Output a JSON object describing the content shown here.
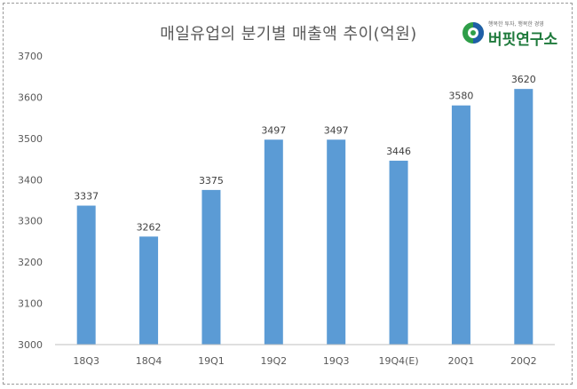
{
  "title": "매일유업의 분기별 매출액 추이(억원)",
  "logo": {
    "name": "버핏연구소",
    "tagline": "행복한 투자, 행복한 경영",
    "colors": {
      "green": "#2e9e48",
      "blue": "#1f5fa8",
      "text": "#1f7a3c"
    }
  },
  "chart_data": {
    "type": "bar",
    "title": "매일유업의 분기별 매출액 추이(억원)",
    "categories": [
      "18Q3",
      "18Q4",
      "19Q1",
      "19Q2",
      "19Q3",
      "19Q4(E)",
      "20Q1",
      "20Q2"
    ],
    "values": [
      3337,
      3262,
      3375,
      3497,
      3497,
      3446,
      3580,
      3620
    ],
    "value_labels": [
      "3337",
      "3262",
      "3375",
      "3497",
      "3497",
      "3446",
      "3580",
      "3620"
    ],
    "yticks": [
      "3000",
      "3100",
      "3200",
      "3300",
      "3400",
      "3500",
      "3600",
      "3700"
    ],
    "ylim": [
      3000,
      3700
    ],
    "xlabel": "",
    "ylabel": "",
    "grid": false,
    "bar_color": "#5b9bd5"
  }
}
